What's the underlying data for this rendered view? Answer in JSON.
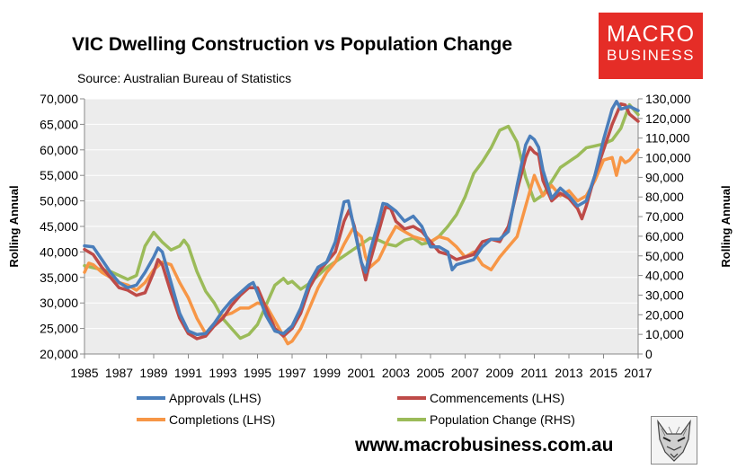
{
  "brand": {
    "line1": "MACRO",
    "line2": "BUSINESS",
    "color": "#e52d27"
  },
  "footer": {
    "url": "www.macrobusiness.com.au"
  },
  "colors": {
    "plot_bg": "#ececec",
    "grid": "#ffffff"
  },
  "chart_data": {
    "type": "line",
    "title": "VIC Dwelling Construction vs Population Change",
    "subtitle": "Source: Australian Bureau of Statistics",
    "ylabel": "Rolling Annual",
    "y2label": "Rolling Annual",
    "xlim": [
      1985,
      2017
    ],
    "ylim": [
      20000,
      70000
    ],
    "y2lim": [
      0,
      130000
    ],
    "x_ticks": [
      "1985",
      "1987",
      "1989",
      "1991",
      "1993",
      "1995",
      "1997",
      "1999",
      "2001",
      "2003",
      "2005",
      "2007",
      "2009",
      "2011",
      "2013",
      "2015",
      "2017"
    ],
    "y_ticks": [
      "20,000",
      "25,000",
      "30,000",
      "35,000",
      "40,000",
      "45,000",
      "50,000",
      "55,000",
      "60,000",
      "65,000",
      "70,000"
    ],
    "y2_ticks": [
      "0",
      "10,000",
      "20,000",
      "30,000",
      "40,000",
      "50,000",
      "60,000",
      "70,000",
      "80,000",
      "90,000",
      "100,000",
      "110,000",
      "120,000",
      "130,000"
    ],
    "grid": "horizontal",
    "legend_position": "bottom",
    "series": [
      {
        "name": "Approvals (LHS)",
        "axis": "left",
        "color": "#4a7ebb",
        "points": [
          [
            1985,
            41200
          ],
          [
            1985.5,
            41000
          ],
          [
            1986,
            38500
          ],
          [
            1986.5,
            36000
          ],
          [
            1987,
            34000
          ],
          [
            1987.5,
            33000
          ],
          [
            1988,
            33500
          ],
          [
            1988.5,
            36000
          ],
          [
            1989,
            39000
          ],
          [
            1989.25,
            40800
          ],
          [
            1989.5,
            40000
          ],
          [
            1990,
            34000
          ],
          [
            1990.5,
            28000
          ],
          [
            1991,
            24500
          ],
          [
            1991.5,
            23800
          ],
          [
            1992,
            24000
          ],
          [
            1992.5,
            26000
          ],
          [
            1993,
            28500
          ],
          [
            1993.5,
            30500
          ],
          [
            1994,
            32000
          ],
          [
            1994.5,
            33500
          ],
          [
            1994.75,
            34000
          ],
          [
            1995,
            32000
          ],
          [
            1995.5,
            27500
          ],
          [
            1996,
            24500
          ],
          [
            1996.5,
            24000
          ],
          [
            1997,
            25500
          ],
          [
            1997.5,
            29000
          ],
          [
            1998,
            34000
          ],
          [
            1998.5,
            37000
          ],
          [
            1999,
            38000
          ],
          [
            1999.5,
            42000
          ],
          [
            2000,
            49800
          ],
          [
            2000.25,
            50000
          ],
          [
            2000.5,
            46000
          ],
          [
            2001,
            38000
          ],
          [
            2001.25,
            36000
          ],
          [
            2001.5,
            40000
          ],
          [
            2002,
            46000
          ],
          [
            2002.25,
            49500
          ],
          [
            2002.5,
            49300
          ],
          [
            2003,
            48000
          ],
          [
            2003.5,
            46000
          ],
          [
            2004,
            47000
          ],
          [
            2004.5,
            45000
          ],
          [
            2005,
            41000
          ],
          [
            2005.5,
            41000
          ],
          [
            2006,
            40000
          ],
          [
            2006.25,
            36500
          ],
          [
            2006.5,
            37500
          ],
          [
            2007,
            38000
          ],
          [
            2007.5,
            38500
          ],
          [
            2008,
            41000
          ],
          [
            2008.5,
            42500
          ],
          [
            2009,
            42500
          ],
          [
            2009.5,
            44000
          ],
          [
            2010,
            53000
          ],
          [
            2010.5,
            61000
          ],
          [
            2010.75,
            62700
          ],
          [
            2011,
            62000
          ],
          [
            2011.25,
            60500
          ],
          [
            2011.5,
            56000
          ],
          [
            2012,
            50500
          ],
          [
            2012.5,
            52500
          ],
          [
            2013,
            51000
          ],
          [
            2013.5,
            49000
          ],
          [
            2014,
            50000
          ],
          [
            2014.5,
            55000
          ],
          [
            2015,
            62000
          ],
          [
            2015.5,
            68000
          ],
          [
            2015.75,
            69500
          ],
          [
            2016,
            68000
          ],
          [
            2016.5,
            68500
          ],
          [
            2017,
            67700
          ]
        ]
      },
      {
        "name": "Commencements (LHS)",
        "axis": "left",
        "color": "#be4b48",
        "points": [
          [
            1985,
            40500
          ],
          [
            1985.5,
            39500
          ],
          [
            1986,
            37000
          ],
          [
            1986.5,
            35000
          ],
          [
            1987,
            33000
          ],
          [
            1987.5,
            32500
          ],
          [
            1988,
            31500
          ],
          [
            1988.5,
            32000
          ],
          [
            1989,
            36000
          ],
          [
            1989.25,
            38500
          ],
          [
            1989.5,
            37500
          ],
          [
            1990,
            32000
          ],
          [
            1990.5,
            27000
          ],
          [
            1991,
            24000
          ],
          [
            1991.5,
            23000
          ],
          [
            1992,
            23500
          ],
          [
            1992.5,
            25500
          ],
          [
            1993,
            27000
          ],
          [
            1993.5,
            29500
          ],
          [
            1994,
            31500
          ],
          [
            1994.5,
            33000
          ],
          [
            1995,
            33000
          ],
          [
            1995.5,
            29000
          ],
          [
            1996,
            25000
          ],
          [
            1996.5,
            23500
          ],
          [
            1997,
            25000
          ],
          [
            1997.5,
            28000
          ],
          [
            1998,
            33000
          ],
          [
            1998.5,
            36000
          ],
          [
            1999,
            38000
          ],
          [
            1999.5,
            40000
          ],
          [
            2000,
            46000
          ],
          [
            2000.3,
            48200
          ],
          [
            2000.6,
            45000
          ],
          [
            2001,
            38000
          ],
          [
            2001.25,
            34500
          ],
          [
            2001.5,
            38000
          ],
          [
            2002,
            44000
          ],
          [
            2002.4,
            48800
          ],
          [
            2002.7,
            48500
          ],
          [
            2003,
            46000
          ],
          [
            2003.5,
            44500
          ],
          [
            2004,
            45000
          ],
          [
            2004.5,
            44000
          ],
          [
            2005,
            42000
          ],
          [
            2005.5,
            40000
          ],
          [
            2006,
            39500
          ],
          [
            2006.5,
            38500
          ],
          [
            2007,
            39000
          ],
          [
            2007.5,
            39500
          ],
          [
            2008,
            42000
          ],
          [
            2008.5,
            42500
          ],
          [
            2009,
            42000
          ],
          [
            2009.5,
            45000
          ],
          [
            2010,
            52000
          ],
          [
            2010.5,
            58500
          ],
          [
            2010.75,
            60500
          ],
          [
            2011,
            59500
          ],
          [
            2011.25,
            59000
          ],
          [
            2011.5,
            54000
          ],
          [
            2012,
            50000
          ],
          [
            2012.5,
            51500
          ],
          [
            2013,
            50500
          ],
          [
            2013.5,
            48500
          ],
          [
            2013.75,
            46500
          ],
          [
            2014,
            49000
          ],
          [
            2014.5,
            55000
          ],
          [
            2015,
            60000
          ],
          [
            2015.5,
            65000
          ],
          [
            2016,
            69000
          ],
          [
            2016.25,
            68800
          ],
          [
            2016.5,
            67000
          ],
          [
            2017,
            65600
          ]
        ]
      },
      {
        "name": "Completions (LHS)",
        "axis": "left",
        "color": "#f79646",
        "points": [
          [
            1985,
            36000
          ],
          [
            1985.25,
            37800
          ],
          [
            1985.5,
            37500
          ],
          [
            1986,
            36000
          ],
          [
            1986.5,
            35000
          ],
          [
            1987,
            34000
          ],
          [
            1987.5,
            33500
          ],
          [
            1988,
            32500
          ],
          [
            1988.5,
            34000
          ],
          [
            1989,
            36500
          ],
          [
            1989.5,
            38000
          ],
          [
            1990,
            37500
          ],
          [
            1990.5,
            34000
          ],
          [
            1991,
            31000
          ],
          [
            1991.5,
            27000
          ],
          [
            1992,
            24000
          ],
          [
            1992.5,
            26000
          ],
          [
            1993,
            27500
          ],
          [
            1993.5,
            28000
          ],
          [
            1994,
            29000
          ],
          [
            1994.5,
            29000
          ],
          [
            1995,
            30000
          ],
          [
            1995.5,
            29500
          ],
          [
            1996,
            26500
          ],
          [
            1996.5,
            23500
          ],
          [
            1996.75,
            22000
          ],
          [
            1997,
            22500
          ],
          [
            1997.5,
            25000
          ],
          [
            1998,
            29000
          ],
          [
            1998.5,
            33000
          ],
          [
            1999,
            36000
          ],
          [
            1999.5,
            38000
          ],
          [
            2000,
            41500
          ],
          [
            2000.5,
            44500
          ],
          [
            2001,
            43000
          ],
          [
            2001.25,
            39000
          ],
          [
            2001.5,
            37000
          ],
          [
            2002,
            38500
          ],
          [
            2002.5,
            42000
          ],
          [
            2003,
            45000
          ],
          [
            2003.5,
            44000
          ],
          [
            2004,
            43000
          ],
          [
            2004.5,
            42500
          ],
          [
            2005,
            42000
          ],
          [
            2005.5,
            43000
          ],
          [
            2006,
            42500
          ],
          [
            2006.5,
            41000
          ],
          [
            2007,
            39000
          ],
          [
            2007.5,
            40000
          ],
          [
            2008,
            37500
          ],
          [
            2008.5,
            36500
          ],
          [
            2009,
            39000
          ],
          [
            2009.5,
            41000
          ],
          [
            2010,
            43000
          ],
          [
            2010.5,
            49000
          ],
          [
            2011,
            55000
          ],
          [
            2011.5,
            51000
          ],
          [
            2012,
            53000
          ],
          [
            2012.5,
            51000
          ],
          [
            2013,
            52000
          ],
          [
            2013.5,
            50000
          ],
          [
            2014,
            51000
          ],
          [
            2014.5,
            54000
          ],
          [
            2015,
            58000
          ],
          [
            2015.5,
            58500
          ],
          [
            2015.75,
            55000
          ],
          [
            2016,
            58500
          ],
          [
            2016.25,
            57500
          ],
          [
            2016.5,
            58000
          ],
          [
            2017,
            60000
          ]
        ]
      },
      {
        "name": "Population Change (RHS)",
        "axis": "right",
        "color": "#9bbb59",
        "points": [
          [
            1985,
            45000
          ],
          [
            1985.5,
            44000
          ],
          [
            1986,
            43000
          ],
          [
            1986.5,
            42000
          ],
          [
            1987,
            40000
          ],
          [
            1987.5,
            38000
          ],
          [
            1988,
            40000
          ],
          [
            1988.5,
            55000
          ],
          [
            1989,
            62000
          ],
          [
            1989.5,
            57000
          ],
          [
            1990,
            53000
          ],
          [
            1990.5,
            55000
          ],
          [
            1990.75,
            58000
          ],
          [
            1991,
            55000
          ],
          [
            1991.5,
            42000
          ],
          [
            1992,
            32000
          ],
          [
            1992.5,
            26000
          ],
          [
            1993,
            18000
          ],
          [
            1993.5,
            13000
          ],
          [
            1994,
            8000
          ],
          [
            1994.5,
            10000
          ],
          [
            1995,
            15000
          ],
          [
            1995.5,
            25000
          ],
          [
            1996,
            35000
          ],
          [
            1996.5,
            38500
          ],
          [
            1996.75,
            36000
          ],
          [
            1997,
            37000
          ],
          [
            1997.5,
            33000
          ],
          [
            1998,
            36000
          ],
          [
            1998.5,
            40000
          ],
          [
            1999,
            44000
          ],
          [
            1999.5,
            47000
          ],
          [
            2000,
            50000
          ],
          [
            2000.5,
            53000
          ],
          [
            2001,
            56000
          ],
          [
            2001.5,
            59000
          ],
          [
            2002,
            58000
          ],
          [
            2002.5,
            56000
          ],
          [
            2003,
            55000
          ],
          [
            2003.5,
            58000
          ],
          [
            2004,
            59000
          ],
          [
            2004.5,
            56000
          ],
          [
            2005,
            57000
          ],
          [
            2005.5,
            60000
          ],
          [
            2006,
            65000
          ],
          [
            2006.5,
            71000
          ],
          [
            2007,
            80000
          ],
          [
            2007.5,
            92000
          ],
          [
            2008,
            98000
          ],
          [
            2008.5,
            105000
          ],
          [
            2009,
            114000
          ],
          [
            2009.5,
            116000
          ],
          [
            2010,
            108000
          ],
          [
            2010.5,
            90000
          ],
          [
            2011,
            78000
          ],
          [
            2011.5,
            81000
          ],
          [
            2012,
            88000
          ],
          [
            2012.5,
            95000
          ],
          [
            2013,
            98000
          ],
          [
            2013.5,
            101000
          ],
          [
            2014,
            105000
          ],
          [
            2014.5,
            106000
          ],
          [
            2015,
            107000
          ],
          [
            2015.5,
            109000
          ],
          [
            2016,
            115000
          ],
          [
            2016.5,
            127000
          ],
          [
            2017,
            122000
          ]
        ]
      }
    ]
  }
}
